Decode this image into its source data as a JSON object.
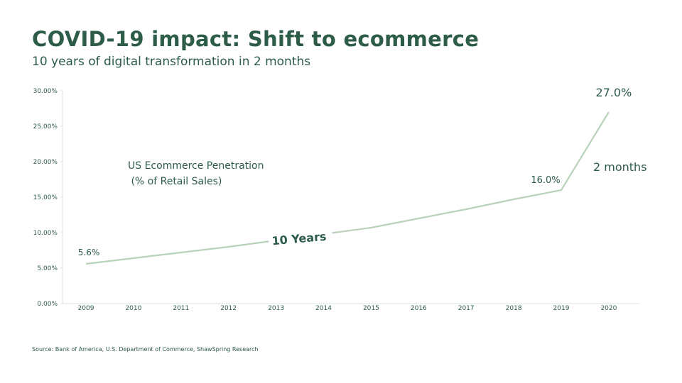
{
  "header": {
    "title": "COVID-19 impact: Shift to ecommerce",
    "subtitle": "10 years of digital transformation in 2 months"
  },
  "footer": {
    "source": "Source: Bank of America, U.S. Department of Commerce, ShawSpring Research"
  },
  "colors": {
    "line": "#b9d2ba",
    "text": "#2d5c48",
    "axis": "#dde6df"
  },
  "chart_data": {
    "type": "line",
    "title": "",
    "series_label_line1": "US Ecommerce Penetration",
    "series_label_line2": " (% of Retail Sales)",
    "x": [
      "2009",
      "2010",
      "2011",
      "2012",
      "2013",
      "2014",
      "2015",
      "2016",
      "2017",
      "2018",
      "2019",
      "2020"
    ],
    "values": [
      5.6,
      6.4,
      7.2,
      8.0,
      8.9,
      9.8,
      10.7,
      12.0,
      13.3,
      14.7,
      16.0,
      27.0
    ],
    "ylim": [
      0,
      30
    ],
    "yticks": [
      "0.00%",
      "5.00%",
      "10.00%",
      "15.00%",
      "20.00%",
      "25.00%",
      "30.00%"
    ],
    "grid": false,
    "data_labels": [
      {
        "index": 0,
        "text": "5.6%"
      },
      {
        "index": 10,
        "text": "16.0%"
      },
      {
        "index": 11,
        "text": "27.0%"
      }
    ],
    "annotations": {
      "ten_years": "10 Years",
      "two_months": "2 months"
    }
  }
}
